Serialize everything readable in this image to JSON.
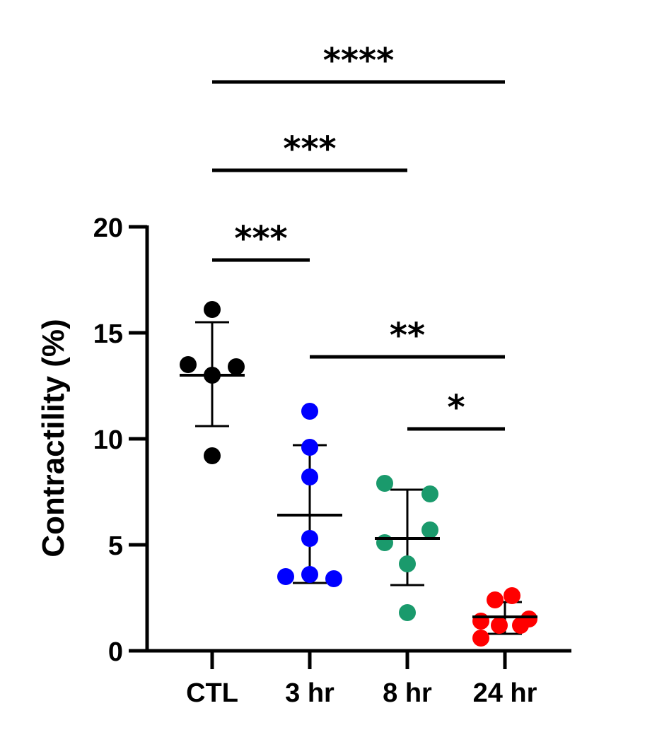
{
  "chart_data": {
    "type": "scatter",
    "title": "",
    "xlabel": "",
    "ylabel": "Contractility (%)",
    "ylim": [
      0,
      20
    ],
    "yticks": [
      "0",
      "5",
      "10",
      "15",
      "20"
    ],
    "categories": [
      "CTL",
      "3 hr",
      "8 hr",
      "24 hr"
    ],
    "groups": [
      {
        "name": "CTL",
        "color": "#000000",
        "points": [
          16.1,
          13.5,
          13.4,
          13.0,
          9.2
        ],
        "mean": 13.0,
        "sd_upper": 15.5,
        "sd_lower": 10.6
      },
      {
        "name": "3 hr",
        "color": "#0000ff",
        "points": [
          11.3,
          9.6,
          8.2,
          5.3,
          3.6,
          3.5,
          3.4
        ],
        "mean": 6.4,
        "sd_upper": 9.7,
        "sd_lower": 3.2
      },
      {
        "name": "8 hr",
        "color": "#1a9a6c",
        "points": [
          7.9,
          7.4,
          5.7,
          5.1,
          4.1,
          1.8
        ],
        "mean": 5.3,
        "sd_upper": 7.6,
        "sd_lower": 3.1
      },
      {
        "name": "24 hr",
        "color": "#ff0000",
        "points": [
          2.6,
          2.4,
          1.5,
          1.4,
          1.2,
          1.2,
          0.6
        ],
        "mean": 1.6,
        "sd_upper": 2.3,
        "sd_lower": 0.8
      }
    ],
    "significance": [
      {
        "from": "CTL",
        "to": "24 hr",
        "label": "****"
      },
      {
        "from": "CTL",
        "to": "8 hr",
        "label": "***"
      },
      {
        "from": "CTL",
        "to": "3 hr",
        "label": "***"
      },
      {
        "from": "3 hr",
        "to": "24 hr",
        "label": "**"
      },
      {
        "from": "8 hr",
        "to": "24 hr",
        "label": "*"
      }
    ]
  }
}
